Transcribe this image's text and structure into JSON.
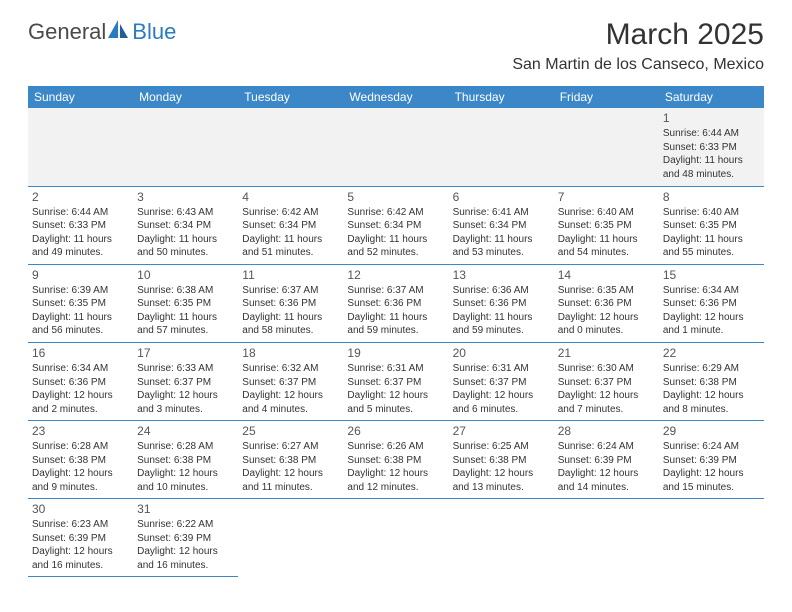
{
  "logo": {
    "general": "General",
    "blue": "Blue"
  },
  "title": "March 2025",
  "location": "San Martin de los Canseco, Mexico",
  "weekdays": [
    "Sunday",
    "Monday",
    "Tuesday",
    "Wednesday",
    "Thursday",
    "Friday",
    "Saturday"
  ],
  "colors": {
    "header_bg": "#3b87c8",
    "header_text": "#ffffff",
    "border": "#3b87c8",
    "logo_blue": "#2b7bbf",
    "text": "#333333",
    "firstrow_bg": "#f2f2f2"
  },
  "weeks": [
    [
      null,
      null,
      null,
      null,
      null,
      null,
      {
        "n": "1",
        "sr": "Sunrise: 6:44 AM",
        "ss": "Sunset: 6:33 PM",
        "d1": "Daylight: 11 hours",
        "d2": "and 48 minutes."
      }
    ],
    [
      {
        "n": "2",
        "sr": "Sunrise: 6:44 AM",
        "ss": "Sunset: 6:33 PM",
        "d1": "Daylight: 11 hours",
        "d2": "and 49 minutes."
      },
      {
        "n": "3",
        "sr": "Sunrise: 6:43 AM",
        "ss": "Sunset: 6:34 PM",
        "d1": "Daylight: 11 hours",
        "d2": "and 50 minutes."
      },
      {
        "n": "4",
        "sr": "Sunrise: 6:42 AM",
        "ss": "Sunset: 6:34 PM",
        "d1": "Daylight: 11 hours",
        "d2": "and 51 minutes."
      },
      {
        "n": "5",
        "sr": "Sunrise: 6:42 AM",
        "ss": "Sunset: 6:34 PM",
        "d1": "Daylight: 11 hours",
        "d2": "and 52 minutes."
      },
      {
        "n": "6",
        "sr": "Sunrise: 6:41 AM",
        "ss": "Sunset: 6:34 PM",
        "d1": "Daylight: 11 hours",
        "d2": "and 53 minutes."
      },
      {
        "n": "7",
        "sr": "Sunrise: 6:40 AM",
        "ss": "Sunset: 6:35 PM",
        "d1": "Daylight: 11 hours",
        "d2": "and 54 minutes."
      },
      {
        "n": "8",
        "sr": "Sunrise: 6:40 AM",
        "ss": "Sunset: 6:35 PM",
        "d1": "Daylight: 11 hours",
        "d2": "and 55 minutes."
      }
    ],
    [
      {
        "n": "9",
        "sr": "Sunrise: 6:39 AM",
        "ss": "Sunset: 6:35 PM",
        "d1": "Daylight: 11 hours",
        "d2": "and 56 minutes."
      },
      {
        "n": "10",
        "sr": "Sunrise: 6:38 AM",
        "ss": "Sunset: 6:35 PM",
        "d1": "Daylight: 11 hours",
        "d2": "and 57 minutes."
      },
      {
        "n": "11",
        "sr": "Sunrise: 6:37 AM",
        "ss": "Sunset: 6:36 PM",
        "d1": "Daylight: 11 hours",
        "d2": "and 58 minutes."
      },
      {
        "n": "12",
        "sr": "Sunrise: 6:37 AM",
        "ss": "Sunset: 6:36 PM",
        "d1": "Daylight: 11 hours",
        "d2": "and 59 minutes."
      },
      {
        "n": "13",
        "sr": "Sunrise: 6:36 AM",
        "ss": "Sunset: 6:36 PM",
        "d1": "Daylight: 11 hours",
        "d2": "and 59 minutes."
      },
      {
        "n": "14",
        "sr": "Sunrise: 6:35 AM",
        "ss": "Sunset: 6:36 PM",
        "d1": "Daylight: 12 hours",
        "d2": "and 0 minutes."
      },
      {
        "n": "15",
        "sr": "Sunrise: 6:34 AM",
        "ss": "Sunset: 6:36 PM",
        "d1": "Daylight: 12 hours",
        "d2": "and 1 minute."
      }
    ],
    [
      {
        "n": "16",
        "sr": "Sunrise: 6:34 AM",
        "ss": "Sunset: 6:36 PM",
        "d1": "Daylight: 12 hours",
        "d2": "and 2 minutes."
      },
      {
        "n": "17",
        "sr": "Sunrise: 6:33 AM",
        "ss": "Sunset: 6:37 PM",
        "d1": "Daylight: 12 hours",
        "d2": "and 3 minutes."
      },
      {
        "n": "18",
        "sr": "Sunrise: 6:32 AM",
        "ss": "Sunset: 6:37 PM",
        "d1": "Daylight: 12 hours",
        "d2": "and 4 minutes."
      },
      {
        "n": "19",
        "sr": "Sunrise: 6:31 AM",
        "ss": "Sunset: 6:37 PM",
        "d1": "Daylight: 12 hours",
        "d2": "and 5 minutes."
      },
      {
        "n": "20",
        "sr": "Sunrise: 6:31 AM",
        "ss": "Sunset: 6:37 PM",
        "d1": "Daylight: 12 hours",
        "d2": "and 6 minutes."
      },
      {
        "n": "21",
        "sr": "Sunrise: 6:30 AM",
        "ss": "Sunset: 6:37 PM",
        "d1": "Daylight: 12 hours",
        "d2": "and 7 minutes."
      },
      {
        "n": "22",
        "sr": "Sunrise: 6:29 AM",
        "ss": "Sunset: 6:38 PM",
        "d1": "Daylight: 12 hours",
        "d2": "and 8 minutes."
      }
    ],
    [
      {
        "n": "23",
        "sr": "Sunrise: 6:28 AM",
        "ss": "Sunset: 6:38 PM",
        "d1": "Daylight: 12 hours",
        "d2": "and 9 minutes."
      },
      {
        "n": "24",
        "sr": "Sunrise: 6:28 AM",
        "ss": "Sunset: 6:38 PM",
        "d1": "Daylight: 12 hours",
        "d2": "and 10 minutes."
      },
      {
        "n": "25",
        "sr": "Sunrise: 6:27 AM",
        "ss": "Sunset: 6:38 PM",
        "d1": "Daylight: 12 hours",
        "d2": "and 11 minutes."
      },
      {
        "n": "26",
        "sr": "Sunrise: 6:26 AM",
        "ss": "Sunset: 6:38 PM",
        "d1": "Daylight: 12 hours",
        "d2": "and 12 minutes."
      },
      {
        "n": "27",
        "sr": "Sunrise: 6:25 AM",
        "ss": "Sunset: 6:38 PM",
        "d1": "Daylight: 12 hours",
        "d2": "and 13 minutes."
      },
      {
        "n": "28",
        "sr": "Sunrise: 6:24 AM",
        "ss": "Sunset: 6:39 PM",
        "d1": "Daylight: 12 hours",
        "d2": "and 14 minutes."
      },
      {
        "n": "29",
        "sr": "Sunrise: 6:24 AM",
        "ss": "Sunset: 6:39 PM",
        "d1": "Daylight: 12 hours",
        "d2": "and 15 minutes."
      }
    ],
    [
      {
        "n": "30",
        "sr": "Sunrise: 6:23 AM",
        "ss": "Sunset: 6:39 PM",
        "d1": "Daylight: 12 hours",
        "d2": "and 16 minutes."
      },
      {
        "n": "31",
        "sr": "Sunrise: 6:22 AM",
        "ss": "Sunset: 6:39 PM",
        "d1": "Daylight: 12 hours",
        "d2": "and 16 minutes."
      },
      null,
      null,
      null,
      null,
      null
    ]
  ]
}
